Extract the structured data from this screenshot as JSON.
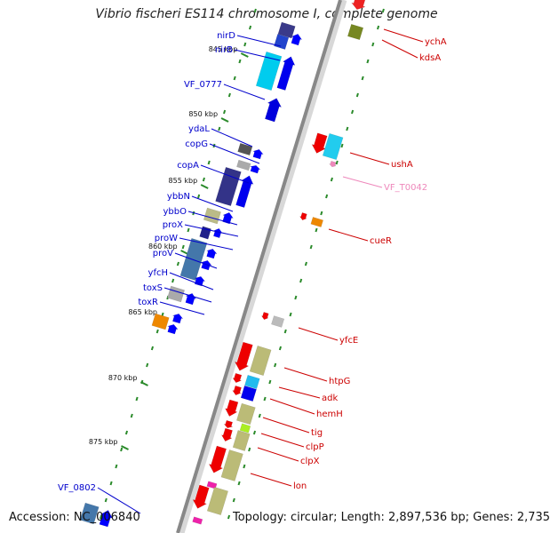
{
  "title": "Vibrio fischeri ES114 chromosome I, complete genome",
  "footer": {
    "accession": "Accession: NC_006840",
    "topology": "Topology: circular; Length: 2,897,536 bp; Genes: 2,735"
  },
  "colors": {
    "forward_label": "#0000cc",
    "reverse_label": "#cc0000",
    "rna_label": "#ee88bb",
    "backbone": "#888888",
    "tick": "#2a8a2a"
  },
  "ticks": [
    "845 kbp",
    "850 kbp",
    "855 kbp",
    "860 kbp",
    "865 kbp",
    "870 kbp",
    "875 kbp"
  ],
  "left_genes": [
    "nirD",
    "nirB",
    "VF_0777",
    "ydaL",
    "copG",
    "copA",
    "ybbN",
    "ybbO",
    "proX",
    "proW",
    "proV",
    "yfcH",
    "toxS",
    "toxR",
    "VF_0802"
  ],
  "right_genes": [
    "ychA",
    "kdsA",
    "ushA",
    "VF_T0042",
    "cueR",
    "yfcE",
    "htpG",
    "adk",
    "hemH",
    "tig",
    "clpP",
    "clpX",
    "lon"
  ]
}
